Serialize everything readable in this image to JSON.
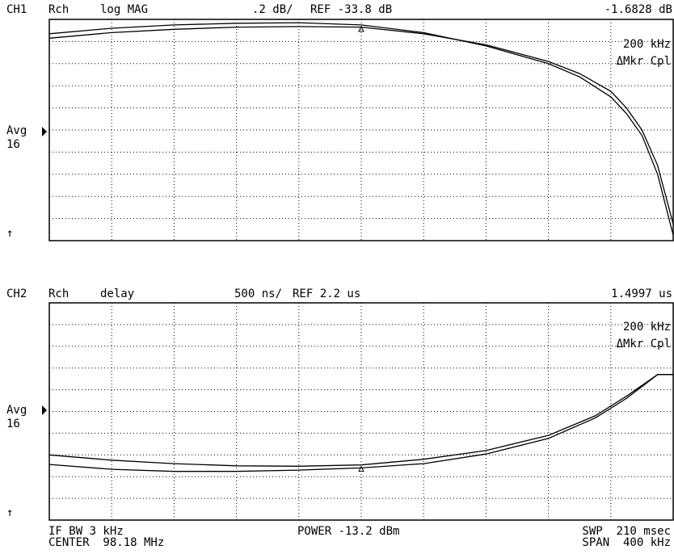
{
  "ch1": {
    "label": "CH1",
    "channel": "Rch",
    "format": "log MAG",
    "scale": ".2 dB/",
    "reference": "REF -33.8 dB",
    "marker_value": "-1.6828 dB",
    "marker_freq": "200 kHz",
    "marker_mode": "ΔMkr Cpl",
    "avg_label": "Avg",
    "avg_count": "16",
    "arrow": "↑"
  },
  "ch2": {
    "label": "CH2",
    "channel": "Rch",
    "format": "delay",
    "scale": "500 ns/",
    "reference": "REF 2.2 us",
    "marker_value": "1.4997 us",
    "marker_freq": "200 kHz",
    "marker_mode": "ΔMkr Cpl",
    "avg_label": "Avg",
    "avg_count": "16",
    "arrow": "↑"
  },
  "footer": {
    "if_bw": "IF BW 3 kHz",
    "center": "CENTER  98.18 MHz",
    "power": "POWER -13.2 dBm",
    "sweep": "SWP  210 msec",
    "span": "SPAN  400 kHz"
  },
  "chart_data": [
    {
      "type": "line",
      "title": "CH1 Rch log MAG",
      "x_unit": "kHz offset from center (span 400 kHz, center 98.18 MHz)",
      "xlim": [
        -200,
        200
      ],
      "grid": true,
      "divisions": {
        "x": 10,
        "y": 10
      },
      "ylim": [
        -2.0,
        0.0
      ],
      "y_unit": "dB (relative, 0.2 dB/div)",
      "series": [
        {
          "x": [
            -200,
            -160,
            -120,
            -80,
            -40,
            0,
            40,
            80,
            120,
            140,
            160,
            170,
            180,
            190,
            200
          ],
          "y": [
            -0.13,
            -0.08,
            -0.05,
            -0.035,
            -0.03,
            -0.05,
            -0.12,
            -0.24,
            -0.4,
            -0.52,
            -0.7,
            -0.85,
            -1.05,
            -1.4,
            -1.95
          ]
        },
        {
          "x": [
            -200,
            -160,
            -120,
            -80,
            -40,
            0,
            40,
            80,
            120,
            140,
            160,
            170,
            180,
            190,
            200
          ],
          "y": [
            -0.17,
            -0.12,
            -0.09,
            -0.07,
            -0.065,
            -0.07,
            -0.13,
            -0.23,
            -0.38,
            -0.49,
            -0.65,
            -0.8,
            -1.0,
            -1.32,
            -1.85
          ]
        }
      ]
    },
    {
      "type": "line",
      "title": "CH2 Rch delay",
      "x_unit": "kHz offset from center (span 400 kHz, center 98.18 MHz)",
      "xlim": [
        -200,
        200
      ],
      "grid": true,
      "divisions": {
        "x": 10,
        "y": 10
      },
      "ylim": [
        0,
        5
      ],
      "y_unit": "us (500 ns/div)",
      "series": [
        {
          "x": [
            -200,
            -160,
            -120,
            -80,
            -40,
            0,
            40,
            80,
            120,
            150,
            170,
            190,
            200
          ],
          "y": [
            1.5,
            1.38,
            1.3,
            1.25,
            1.24,
            1.27,
            1.4,
            1.6,
            1.95,
            2.4,
            2.85,
            3.35,
            3.35
          ]
        },
        {
          "x": [
            -200,
            -160,
            -120,
            -80,
            -40,
            0,
            40,
            80,
            120,
            150,
            170,
            190,
            200
          ],
          "y": [
            1.28,
            1.17,
            1.12,
            1.12,
            1.15,
            1.2,
            1.3,
            1.52,
            1.88,
            2.35,
            2.8,
            3.35,
            3.35
          ]
        }
      ]
    }
  ]
}
